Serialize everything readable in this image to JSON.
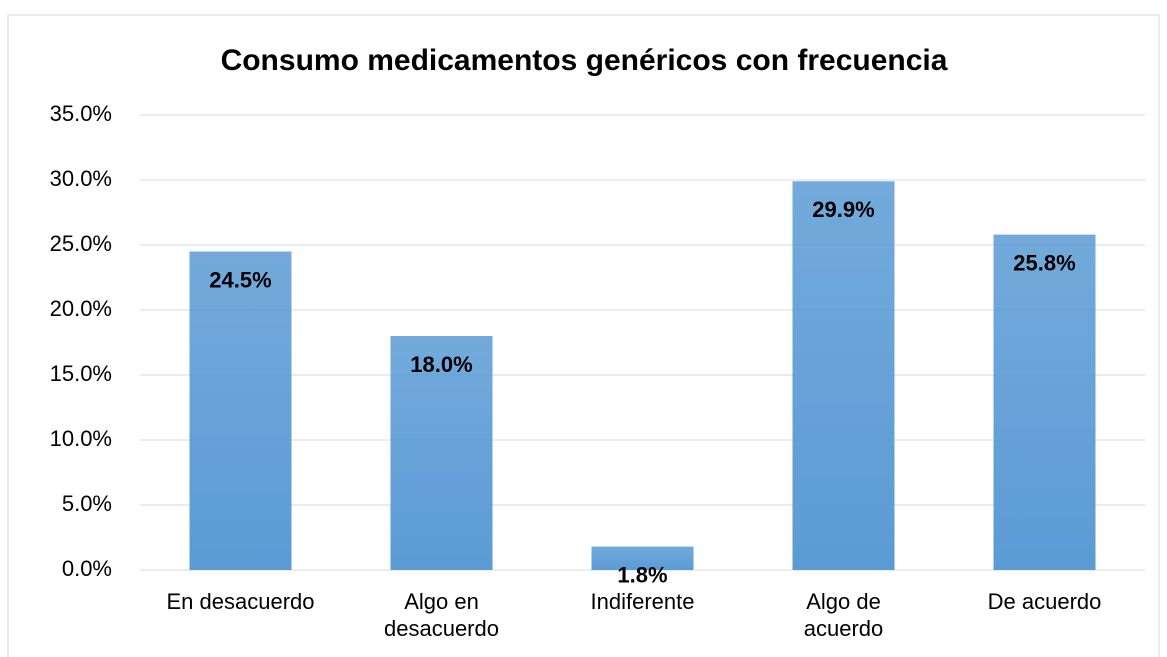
{
  "chart_data": {
    "type": "bar",
    "title": "Consumo medicamentos genéricos con frecuencia",
    "categories": [
      "En desacuerdo",
      "Algo en desacuerdo",
      "Indiferente",
      "Algo de acuerdo",
      "De acuerdo"
    ],
    "values": [
      24.5,
      18.0,
      1.8,
      29.9,
      25.8
    ],
    "value_labels": [
      "24.5%",
      "18.0%",
      "1.8%",
      "29.9%",
      "25.8%"
    ],
    "color": "#5b9bd5",
    "ylim": [
      0,
      35
    ],
    "yticks": [
      {
        "value": 0,
        "label": "0.0%"
      },
      {
        "value": 5,
        "label": "5.0%"
      },
      {
        "value": 10,
        "label": "10.0%"
      },
      {
        "value": 15,
        "label": "15.0%"
      },
      {
        "value": 20,
        "label": "20.0%"
      },
      {
        "value": 25,
        "label": "25.0%"
      },
      {
        "value": 30,
        "label": "30.0%"
      },
      {
        "value": 35,
        "label": "35.0%"
      }
    ],
    "grid": true
  }
}
